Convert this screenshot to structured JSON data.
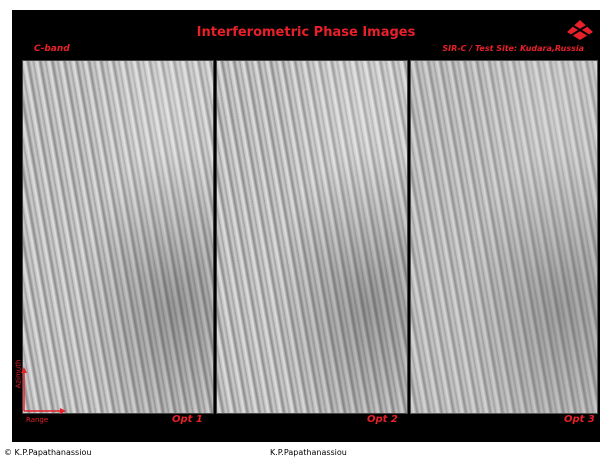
{
  "title": "Interferometric Phase Images",
  "band": "C-band",
  "site": "SIR-C  / Test Site: Kudara,Russia",
  "images": [
    "Opt 1",
    "Opt 2",
    "Opt 3"
  ],
  "axes": {
    "azimuth": "Azimuth",
    "range": "Range"
  },
  "footer": {
    "copyright": "© K.P.Papathanassiou",
    "author": "K.P.Papathanassiou"
  }
}
